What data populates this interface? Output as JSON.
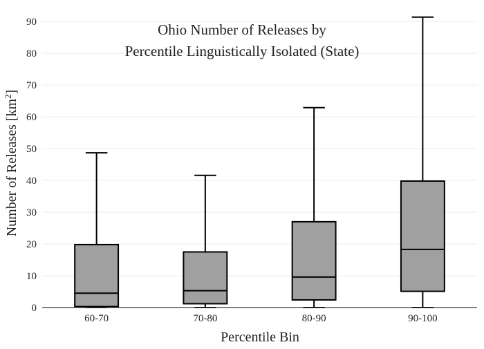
{
  "chart_data": {
    "type": "box",
    "title_lines": [
      "Ohio Number of Releases by",
      "Percentile Linguistically Isolated (State)"
    ],
    "xlabel": "Percentile Bin",
    "ylabel_main": "Number of Releases  [km",
    "ylabel_sup": "2",
    "ylabel_close": "]",
    "ylim": [
      0,
      92
    ],
    "y_ticks": [
      0,
      10,
      20,
      30,
      40,
      50,
      60,
      70,
      80,
      90
    ],
    "grid": true,
    "box_color": "#a0a0a0",
    "categories": [
      "60-70",
      "70-80",
      "80-90",
      "90-100"
    ],
    "boxes": [
      {
        "category": "60-70",
        "min": 0,
        "q1": 0.3,
        "median": 4.5,
        "q3": 19.8,
        "max": 48.7
      },
      {
        "category": "70-80",
        "min": 0,
        "q1": 1.2,
        "median": 5.3,
        "q3": 17.5,
        "max": 41.6
      },
      {
        "category": "80-90",
        "min": 0,
        "q1": 2.4,
        "median": 9.6,
        "q3": 27.0,
        "max": 62.9
      },
      {
        "category": "90-100",
        "min": 0,
        "q1": 5.1,
        "median": 18.3,
        "q3": 39.8,
        "max": 91.4
      }
    ]
  }
}
